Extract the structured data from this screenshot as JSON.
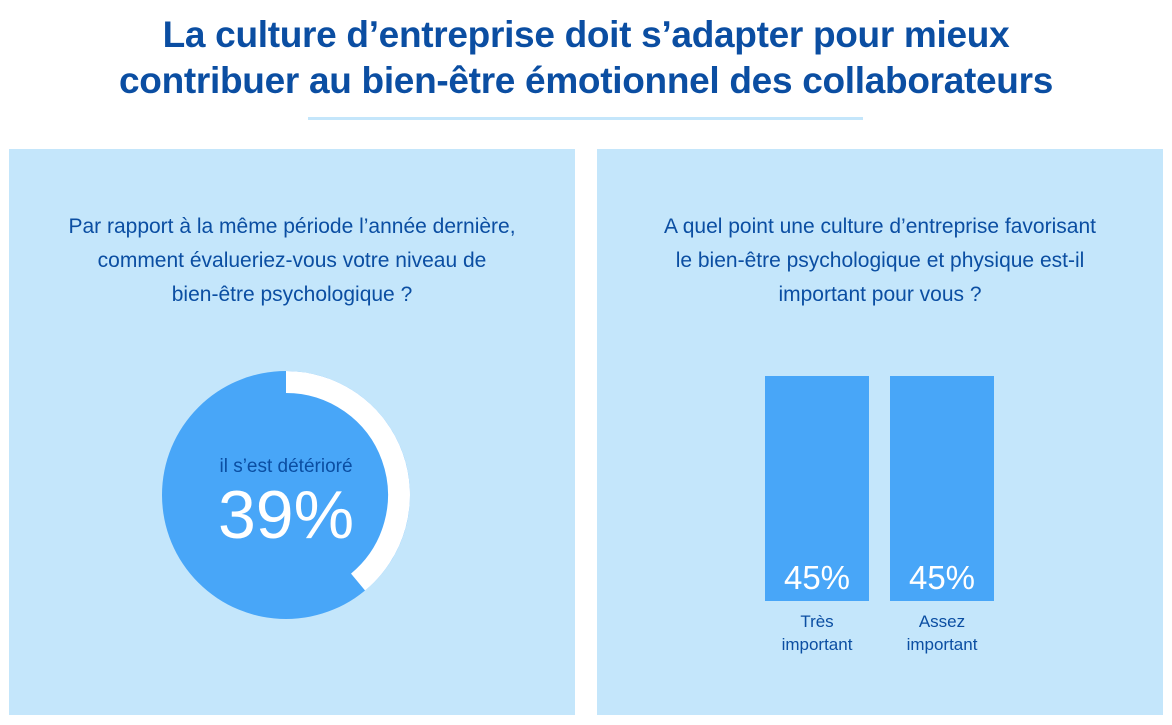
{
  "header": {
    "title_line1": "La culture d’entreprise doit s’adapter pour mieux",
    "title_line2": "contribuer au bien-être émotionnel des collaborateurs"
  },
  "colors": {
    "title": "#0b4ea2",
    "underline": "#c4e6fb",
    "panel_bg": "#c4e6fb",
    "question_text": "#0b4ea2",
    "accent": "#48a6f8",
    "ring": "#ffffff",
    "value_text": "#ffffff",
    "label_text": "#0b4ea2"
  },
  "left_panel": {
    "question_line1": "Par rapport à la même période l’année dernière,",
    "question_line2": "comment évalueriez-vous votre niveau de",
    "question_line3": "bien-être psychologique ?"
  },
  "right_panel": {
    "question_line1": "A quel point une culture d’entreprise favorisant",
    "question_line2": "le bien-être psychologique et physique est-il",
    "question_line3": "important pour vous ?"
  },
  "chart_data": [
    {
      "type": "pie",
      "label": "il s’est détérioré",
      "value": 39,
      "value_label": "39%",
      "max": 100
    },
    {
      "type": "bar",
      "categories": [
        {
          "line1": "Très",
          "line2": "important"
        },
        {
          "line1": "Assez",
          "line2": "important"
        }
      ],
      "values": [
        45,
        45
      ],
      "value_labels": [
        "45%",
        "45%"
      ],
      "ylim": [
        0,
        100
      ]
    }
  ]
}
